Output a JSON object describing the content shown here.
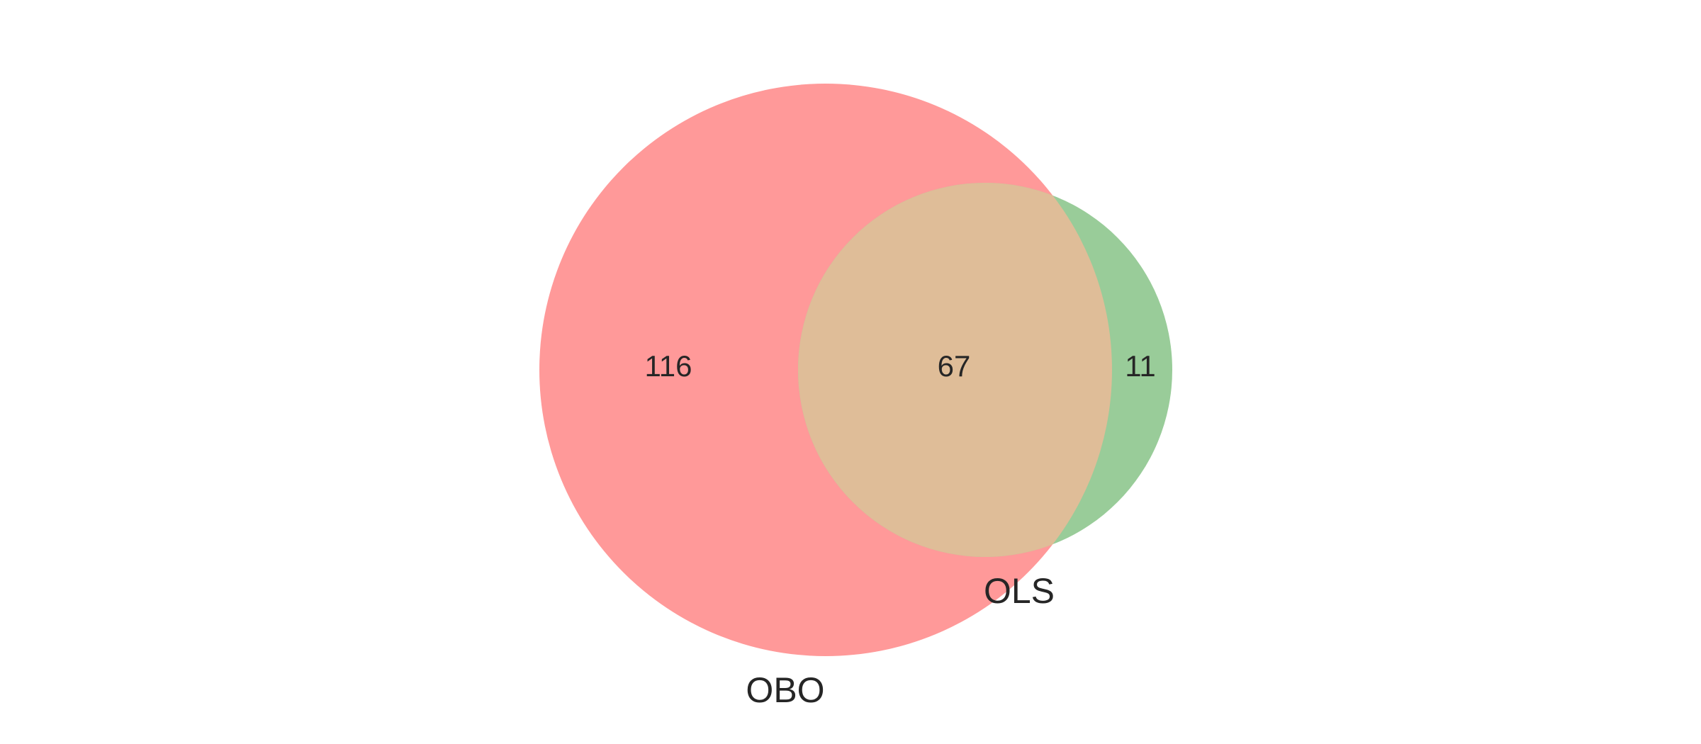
{
  "venn": {
    "sets": [
      {
        "name": "OBO",
        "color": "#ff9999"
      },
      {
        "name": "OLS",
        "color": "#99cc99"
      }
    ],
    "overlap_color": "#dfbd98",
    "regions": {
      "obo_only": "116",
      "both": "67",
      "ols_only": "11"
    }
  }
}
